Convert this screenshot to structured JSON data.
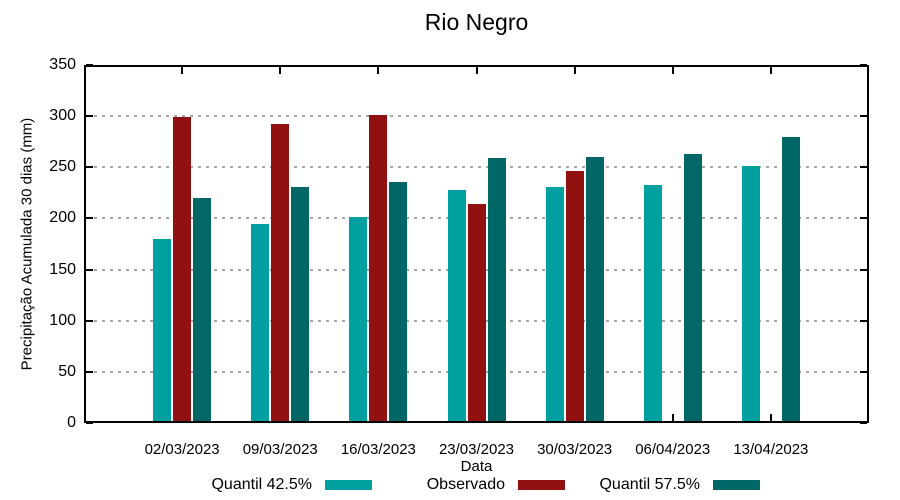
{
  "title": "Rio Negro",
  "chart_data": {
    "type": "bar",
    "title": "Rio Negro",
    "categories": [
      "02/03/2023",
      "09/03/2023",
      "16/03/2023",
      "23/03/2023",
      "30/03/2023",
      "06/04/2023",
      "13/04/2023"
    ],
    "series": [
      {
        "name": "Quantil 42.5%",
        "color": "#00A0A0",
        "values": [
          180,
          195,
          201,
          228,
          231,
          233,
          251
        ]
      },
      {
        "name": "Observado",
        "color": "#911010",
        "values": [
          299,
          292,
          301,
          214,
          246,
          null,
          null
        ]
      },
      {
        "name": "Quantil 57.5%",
        "color": "#006666",
        "values": [
          220,
          231,
          236,
          259,
          260,
          263,
          280
        ]
      }
    ],
    "xlabel": "Data",
    "ylabel": "Precipitação Acumulada 30 dias (mm)",
    "ylim": [
      0,
      350
    ],
    "yticks": [
      0,
      50,
      100,
      150,
      200,
      250,
      300,
      350
    ],
    "grid": "horizontal-dotted",
    "gridline_values": [
      50,
      100,
      150,
      200,
      250,
      300
    ],
    "legend_position": "bottom",
    "colors": {
      "grid": "#a6a6a6",
      "axis": "#000000",
      "background": "#ffffff"
    }
  }
}
